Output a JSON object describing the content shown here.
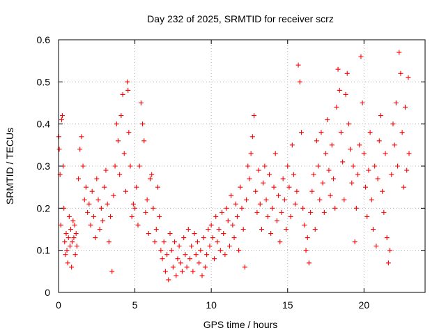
{
  "chart_data": {
    "type": "scatter",
    "title": "Day 232 of 2025, SRMTID for receiver scrz",
    "xlabel": "GPS time / hours",
    "ylabel": "SRMTID / TECUs",
    "xlim": [
      0,
      24
    ],
    "ylim": [
      0,
      0.6
    ],
    "xticks": [
      0,
      5,
      10,
      15,
      20
    ],
    "xtick_labels": [
      "0",
      "5",
      "10",
      "15",
      "20"
    ],
    "yticks": [
      0,
      0.1,
      0.2,
      0.3,
      0.4,
      0.5,
      0.6
    ],
    "ytick_labels": [
      "0",
      "0.1",
      "0.2",
      "0.3",
      "0.4",
      "0.5",
      "0.6"
    ],
    "grid": true,
    "marker": "plus",
    "color": "#ff0000",
    "series": [
      {
        "name": "SRMTID",
        "points": [
          [
            0.02,
            0.37
          ],
          [
            0.05,
            0.34
          ],
          [
            0.1,
            0.28
          ],
          [
            0.15,
            0.16
          ],
          [
            0.2,
            0.41
          ],
          [
            0.25,
            0.42
          ],
          [
            0.3,
            0.3
          ],
          [
            0.35,
            0.2
          ],
          [
            0.4,
            0.12
          ],
          [
            0.45,
            0.09
          ],
          [
            0.5,
            0.14
          ],
          [
            0.55,
            0.1
          ],
          [
            0.6,
            0.07
          ],
          [
            0.65,
            0.13
          ],
          [
            0.7,
            0.18
          ],
          [
            0.75,
            0.11
          ],
          [
            0.8,
            0.15
          ],
          [
            0.85,
            0.06
          ],
          [
            0.9,
            0.12
          ],
          [
            0.95,
            0.17
          ],
          [
            1.0,
            0.13
          ],
          [
            1.05,
            0.16
          ],
          [
            1.1,
            0.09
          ],
          [
            1.15,
            0.14
          ],
          [
            1.2,
            0.11
          ],
          [
            1.3,
            0.27
          ],
          [
            1.4,
            0.34
          ],
          [
            1.5,
            0.37
          ],
          [
            1.6,
            0.3
          ],
          [
            1.7,
            0.22
          ],
          [
            1.8,
            0.25
          ],
          [
            1.9,
            0.19
          ],
          [
            2.0,
            0.21
          ],
          [
            2.1,
            0.16
          ],
          [
            2.2,
            0.24
          ],
          [
            2.3,
            0.18
          ],
          [
            2.4,
            0.13
          ],
          [
            2.5,
            0.27
          ],
          [
            2.6,
            0.22
          ],
          [
            2.7,
            0.15
          ],
          [
            2.8,
            0.2
          ],
          [
            2.9,
            0.17
          ],
          [
            3.0,
            0.25
          ],
          [
            3.1,
            0.29
          ],
          [
            3.2,
            0.21
          ],
          [
            3.3,
            0.12
          ],
          [
            3.4,
            0.18
          ],
          [
            3.5,
            0.05
          ],
          [
            3.6,
            0.23
          ],
          [
            3.7,
            0.3
          ],
          [
            3.8,
            0.4
          ],
          [
            3.9,
            0.36
          ],
          [
            4.0,
            0.28
          ],
          [
            4.1,
            0.42
          ],
          [
            4.2,
            0.47
          ],
          [
            4.3,
            0.33
          ],
          [
            4.4,
            0.24
          ],
          [
            4.5,
            0.5
          ],
          [
            4.55,
            0.48
          ],
          [
            4.6,
            0.38
          ],
          [
            4.7,
            0.3
          ],
          [
            4.8,
            0.18
          ],
          [
            4.9,
            0.21
          ],
          [
            5.0,
            0.2
          ],
          [
            5.1,
            0.25
          ],
          [
            5.2,
            0.16
          ],
          [
            5.3,
            0.3
          ],
          [
            5.4,
            0.45
          ],
          [
            5.5,
            0.4
          ],
          [
            5.6,
            0.36
          ],
          [
            5.7,
            0.19
          ],
          [
            5.8,
            0.22
          ],
          [
            5.9,
            0.14
          ],
          [
            6.0,
            0.27
          ],
          [
            6.1,
            0.28
          ],
          [
            6.2,
            0.2
          ],
          [
            6.3,
            0.12
          ],
          [
            6.4,
            0.15
          ],
          [
            6.5,
            0.25
          ],
          [
            6.6,
            0.18
          ],
          [
            6.7,
            0.1
          ],
          [
            6.8,
            0.08
          ],
          [
            6.9,
            0.12
          ],
          [
            7.0,
            0.05
          ],
          [
            7.1,
            0.09
          ],
          [
            7.2,
            0.03
          ],
          [
            7.3,
            0.14
          ],
          [
            7.4,
            0.1
          ],
          [
            7.5,
            0.06
          ],
          [
            7.6,
            0.12
          ],
          [
            7.7,
            0.04
          ],
          [
            7.8,
            0.08
          ],
          [
            7.9,
            0.11
          ],
          [
            8.0,
            0.07
          ],
          [
            8.1,
            0.05
          ],
          [
            8.2,
            0.13
          ],
          [
            8.3,
            0.09
          ],
          [
            8.4,
            0.06
          ],
          [
            8.5,
            0.15
          ],
          [
            8.6,
            0.08
          ],
          [
            8.7,
            0.11
          ],
          [
            8.8,
            0.05
          ],
          [
            8.9,
            0.14
          ],
          [
            9.0,
            0.09
          ],
          [
            9.1,
            0.12
          ],
          [
            9.2,
            0.07
          ],
          [
            9.3,
            0.1
          ],
          [
            9.4,
            0.04
          ],
          [
            9.5,
            0.13
          ],
          [
            9.6,
            0.06
          ],
          [
            9.7,
            0.09
          ],
          [
            9.8,
            0.15
          ],
          [
            9.9,
            0.11
          ],
          [
            10.0,
            0.16
          ],
          [
            10.1,
            0.13
          ],
          [
            10.2,
            0.08
          ],
          [
            10.3,
            0.18
          ],
          [
            10.4,
            0.12
          ],
          [
            10.5,
            0.15
          ],
          [
            10.6,
            0.1
          ],
          [
            10.7,
            0.19
          ],
          [
            10.8,
            0.14
          ],
          [
            10.9,
            0.09
          ],
          [
            11.0,
            0.2
          ],
          [
            11.1,
            0.17
          ],
          [
            11.2,
            0.11
          ],
          [
            11.3,
            0.23
          ],
          [
            11.4,
            0.16
          ],
          [
            11.5,
            0.13
          ],
          [
            11.6,
            0.21
          ],
          [
            11.7,
            0.18
          ],
          [
            11.8,
            0.1
          ],
          [
            11.9,
            0.25
          ],
          [
            12.0,
            0.2
          ],
          [
            12.1,
            0.15
          ],
          [
            12.2,
            0.06
          ],
          [
            12.3,
            0.22
          ],
          [
            12.4,
            0.3
          ],
          [
            12.5,
            0.27
          ],
          [
            12.6,
            0.33
          ],
          [
            12.7,
            0.37
          ],
          [
            12.8,
            0.42
          ],
          [
            12.9,
            0.24
          ],
          [
            13.0,
            0.19
          ],
          [
            13.1,
            0.29
          ],
          [
            13.2,
            0.21
          ],
          [
            13.3,
            0.15
          ],
          [
            13.4,
            0.26
          ],
          [
            13.5,
            0.3
          ],
          [
            13.6,
            0.22
          ],
          [
            13.7,
            0.18
          ],
          [
            13.8,
            0.28
          ],
          [
            13.9,
            0.14
          ],
          [
            14.0,
            0.2
          ],
          [
            14.1,
            0.25
          ],
          [
            14.2,
            0.33
          ],
          [
            14.3,
            0.17
          ],
          [
            14.4,
            0.23
          ],
          [
            14.5,
            0.12
          ],
          [
            14.6,
            0.19
          ],
          [
            14.7,
            0.27
          ],
          [
            14.8,
            0.22
          ],
          [
            14.9,
            0.15
          ],
          [
            15.0,
            0.3
          ],
          [
            15.1,
            0.25
          ],
          [
            15.2,
            0.18
          ],
          [
            15.3,
            0.35
          ],
          [
            15.4,
            0.28
          ],
          [
            15.5,
            0.21
          ],
          [
            15.6,
            0.24
          ],
          [
            15.7,
            0.54
          ],
          [
            15.8,
            0.5
          ],
          [
            15.9,
            0.38
          ],
          [
            16.0,
            0.2
          ],
          [
            16.1,
            0.16
          ],
          [
            16.2,
            0.1
          ],
          [
            16.3,
            0.13
          ],
          [
            16.4,
            0.07
          ],
          [
            16.5,
            0.19
          ],
          [
            16.6,
            0.24
          ],
          [
            16.7,
            0.28
          ],
          [
            16.8,
            0.15
          ],
          [
            16.9,
            0.36
          ],
          [
            17.0,
            0.3
          ],
          [
            17.1,
            0.22
          ],
          [
            17.2,
            0.38
          ],
          [
            17.3,
            0.26
          ],
          [
            17.4,
            0.19
          ],
          [
            17.5,
            0.33
          ],
          [
            17.6,
            0.41
          ],
          [
            17.7,
            0.29
          ],
          [
            17.8,
            0.23
          ],
          [
            17.9,
            0.35
          ],
          [
            18.0,
            0.27
          ],
          [
            18.1,
            0.2
          ],
          [
            18.2,
            0.44
          ],
          [
            18.3,
            0.53
          ],
          [
            18.4,
            0.48
          ],
          [
            18.5,
            0.38
          ],
          [
            18.6,
            0.31
          ],
          [
            18.7,
            0.22
          ],
          [
            18.8,
            0.47
          ],
          [
            18.9,
            0.52
          ],
          [
            19.0,
            0.4
          ],
          [
            19.1,
            0.34
          ],
          [
            19.2,
            0.26
          ],
          [
            19.3,
            0.3
          ],
          [
            19.4,
            0.12
          ],
          [
            19.5,
            0.2
          ],
          [
            19.6,
            0.28
          ],
          [
            19.7,
            0.35
          ],
          [
            19.8,
            0.56
          ],
          [
            19.9,
            0.45
          ],
          [
            20.0,
            0.33
          ],
          [
            20.1,
            0.25
          ],
          [
            20.2,
            0.18
          ],
          [
            20.3,
            0.29
          ],
          [
            20.4,
            0.38
          ],
          [
            20.5,
            0.22
          ],
          [
            20.6,
            0.15
          ],
          [
            20.7,
            0.3
          ],
          [
            20.8,
            0.11
          ],
          [
            20.9,
            0.27
          ],
          [
            21.0,
            0.36
          ],
          [
            21.1,
            0.42
          ],
          [
            21.2,
            0.24
          ],
          [
            21.3,
            0.19
          ],
          [
            21.4,
            0.33
          ],
          [
            21.5,
            0.13
          ],
          [
            21.6,
            0.07
          ],
          [
            21.7,
            0.1
          ],
          [
            21.8,
            0.28
          ],
          [
            21.9,
            0.4
          ],
          [
            22.0,
            0.35
          ],
          [
            22.1,
            0.45
          ],
          [
            22.2,
            0.3
          ],
          [
            22.3,
            0.57
          ],
          [
            22.4,
            0.52
          ],
          [
            22.5,
            0.38
          ],
          [
            22.6,
            0.25
          ],
          [
            22.7,
            0.44
          ],
          [
            22.8,
            0.29
          ],
          [
            22.9,
            0.51
          ],
          [
            22.95,
            0.33
          ]
        ]
      }
    ]
  }
}
